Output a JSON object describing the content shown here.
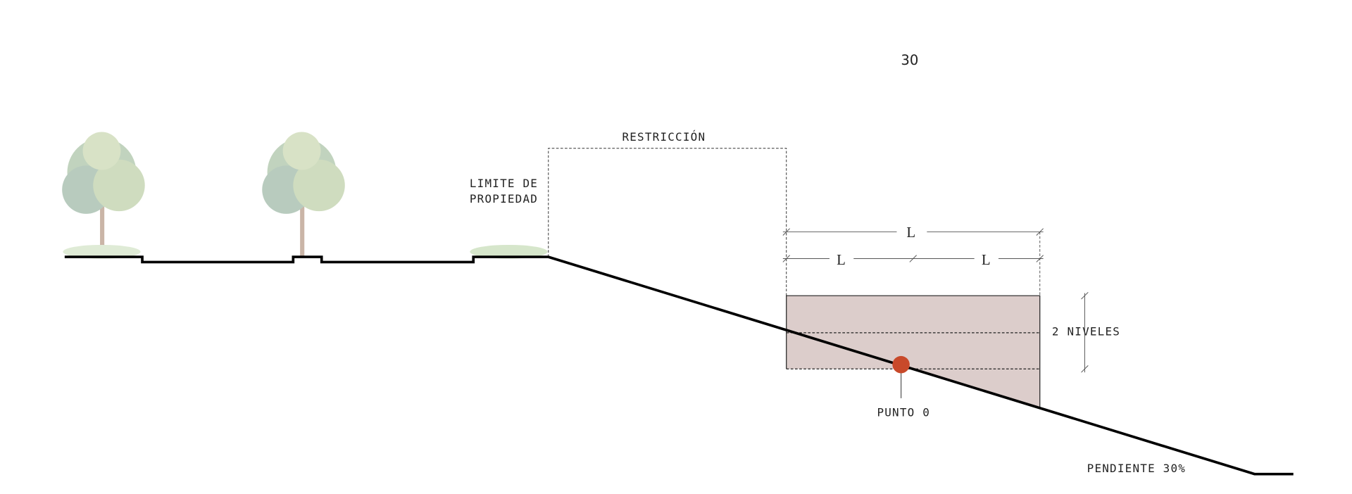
{
  "page_number": "30",
  "labels": {
    "restriction": "RESTRICCIÓN",
    "property_limit": [
      "LIMITE DE",
      "PROPIEDAD"
    ],
    "dimensions": [
      "L",
      "L",
      "L"
    ],
    "levels": "2 NIVELES",
    "point_zero": "PUNTO 0",
    "slope": "PENDIENTE 30%"
  }
}
